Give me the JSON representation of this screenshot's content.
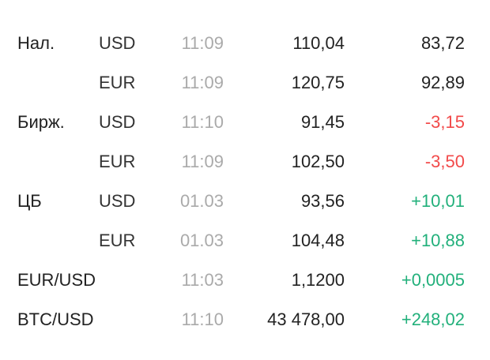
{
  "colors": {
    "negative": "#f24a4a",
    "positive": "#22b07b",
    "time": "#aaaaaa",
    "text": "#222222"
  },
  "rows": [
    {
      "label": "Нал.",
      "currency": "USD",
      "time": "11:09",
      "value": "110,04",
      "change": "83,72",
      "trend": "neutral"
    },
    {
      "label": "",
      "currency": "EUR",
      "time": "11:09",
      "value": "120,75",
      "change": "92,89",
      "trend": "neutral"
    },
    {
      "label": "Бирж.",
      "currency": "USD",
      "time": "11:10",
      "value": "91,45",
      "change": "-3,15",
      "trend": "neg"
    },
    {
      "label": "",
      "currency": "EUR",
      "time": "11:09",
      "value": "102,50",
      "change": "-3,50",
      "trend": "neg"
    },
    {
      "label": "ЦБ",
      "currency": "USD",
      "time": "01.03",
      "value": "93,56",
      "change": "+10,01",
      "trend": "pos"
    },
    {
      "label": "",
      "currency": "EUR",
      "time": "01.03",
      "value": "104,48",
      "change": "+10,88",
      "trend": "pos"
    },
    {
      "label": "EUR/USD",
      "currency": "",
      "time": "11:03",
      "value": "1,1200",
      "change": "+0,0005",
      "trend": "pos"
    },
    {
      "label": "BTC/USD",
      "currency": "",
      "time": "11:10",
      "value": "43 478,00",
      "change": "+248,02",
      "trend": "pos"
    }
  ]
}
